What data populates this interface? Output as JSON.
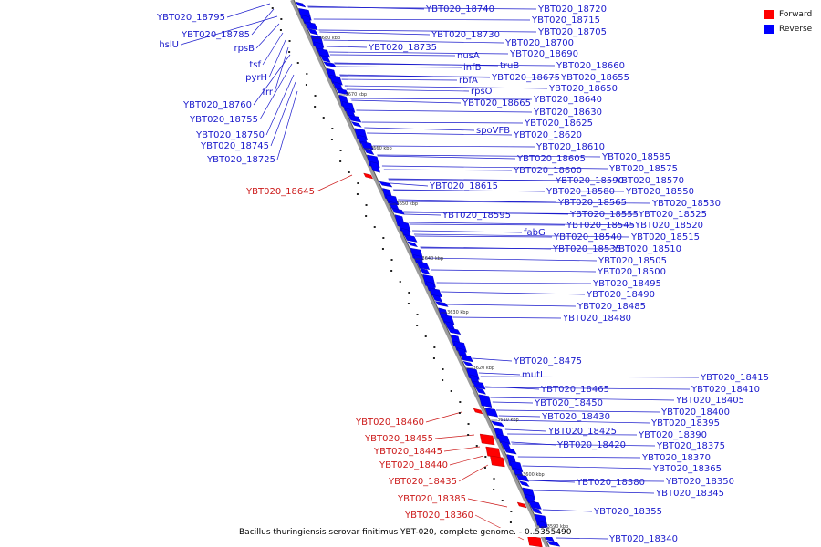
{
  "legend": {
    "items": [
      {
        "label": "Forward",
        "color": "#ff0000"
      },
      {
        "label": "Reverse",
        "color": "#0000ff"
      }
    ]
  },
  "caption": "Bacillus thuringiensis serovar finitimus YBT-020, complete genome. - 0..5355490",
  "colors": {
    "reverse_label": "#1a1acc",
    "forward_label": "#cc1a1a",
    "reverse_gene": "#0000ff",
    "forward_gene": "#ff0000",
    "backbone": "#888888"
  },
  "ticks": [
    "3680 kbp",
    "3670 kbp",
    "3660 kbp",
    "3650 kbp",
    "3640 kbp",
    "3630 kbp",
    "3620 kbp",
    "3610 kbp",
    "3600 kbp",
    "3590 kbp"
  ],
  "labels_left": [
    "YBT020_18795",
    "YBT020_18785",
    "hslU",
    "rpsB",
    "tsf",
    "pyrH",
    "frr",
    "YBT020_18760",
    "YBT020_18755",
    "YBT020_18750",
    "YBT020_18745",
    "YBT020_18725"
  ],
  "labels_forward": [
    "YBT020_18645",
    "YBT020_18460",
    "YBT020_18455",
    "YBT020_18445",
    "YBT020_18440",
    "YBT020_18435",
    "YBT020_18385",
    "YBT020_18360"
  ],
  "labels_right": [
    "YBT020_18740",
    "YBT020_18720",
    "YBT020_18715",
    "YBT020_18730",
    "YBT020_18705",
    "YBT020_18735",
    "YBT020_18700",
    "YBT020_18690",
    "nusA",
    "truB",
    "YBT020_18660",
    "infB",
    "YBT020_18675",
    "YBT020_18655",
    "rbfA",
    "YBT020_18650",
    "rpsO",
    "YBT020_18640",
    "YBT020_18665",
    "YBT020_18630",
    "YBT020_18625",
    "spoVFB",
    "YBT020_18620",
    "YBT020_18610",
    "YBT020_18605",
    "YBT020_18585",
    "YBT020_18600",
    "YBT020_18575",
    "YBT020_18590",
    "YBT020_18570",
    "YBT020_18615",
    "YBT020_18580",
    "YBT020_18550",
    "YBT020_18565",
    "YBT020_18530",
    "YBT020_18595",
    "YBT020_18555",
    "YBT020_18525",
    "YBT020_18545",
    "YBT020_18520",
    "fabG",
    "YBT020_18540",
    "YBT020_18515",
    "YBT020_18535",
    "YBT020_18510",
    "YBT020_18505",
    "YBT020_18500",
    "YBT020_18495",
    "YBT020_18490",
    "YBT020_18485",
    "YBT020_18480",
    "YBT020_18475",
    "mutL",
    "YBT020_18415",
    "YBT020_18465",
    "YBT020_18410",
    "YBT020_18450",
    "YBT020_18405",
    "YBT020_18400",
    "YBT020_18430",
    "YBT020_18395",
    "YBT020_18425",
    "YBT020_18390",
    "YBT020_18420",
    "YBT020_18375",
    "YBT020_18370",
    "YBT020_18365",
    "YBT020_18380",
    "YBT020_18350",
    "YBT020_18345",
    "YBT020_18355",
    "YBT020_18340"
  ]
}
